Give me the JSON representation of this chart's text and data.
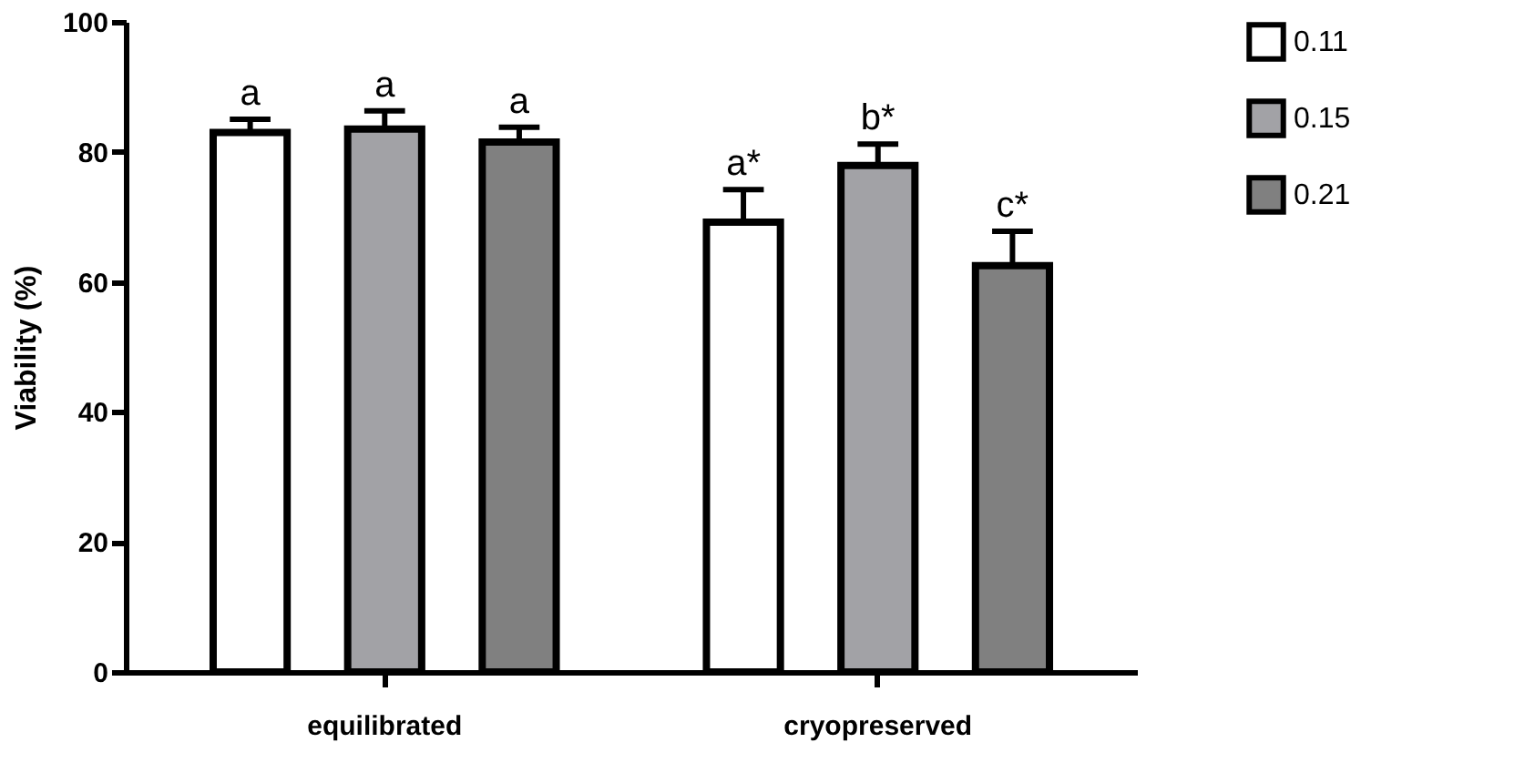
{
  "chart_data": {
    "type": "bar",
    "ylabel": "Viability (%)",
    "categories": [
      "equilibrated",
      "cryopreserved"
    ],
    "series": [
      {
        "name": "0.11",
        "color": "#ffffff",
        "values": [
          83,
          69.2
        ],
        "errors": [
          2,
          5
        ]
      },
      {
        "name": "0.15",
        "color": "#a2a2a6",
        "values": [
          83.5,
          77.9
        ],
        "errors": [
          2.8,
          3.3
        ]
      },
      {
        "name": "0.21",
        "color": "#808080",
        "values": [
          81.5,
          62.5
        ],
        "errors": [
          2.3,
          5.3
        ]
      }
    ],
    "annotations": [
      "a",
      "a",
      "a",
      "a*",
      "b*",
      "c*"
    ],
    "ylim": [
      0,
      100
    ],
    "yticks": [
      0,
      20,
      40,
      60,
      80,
      100
    ],
    "grid": false,
    "legend": "top right"
  }
}
